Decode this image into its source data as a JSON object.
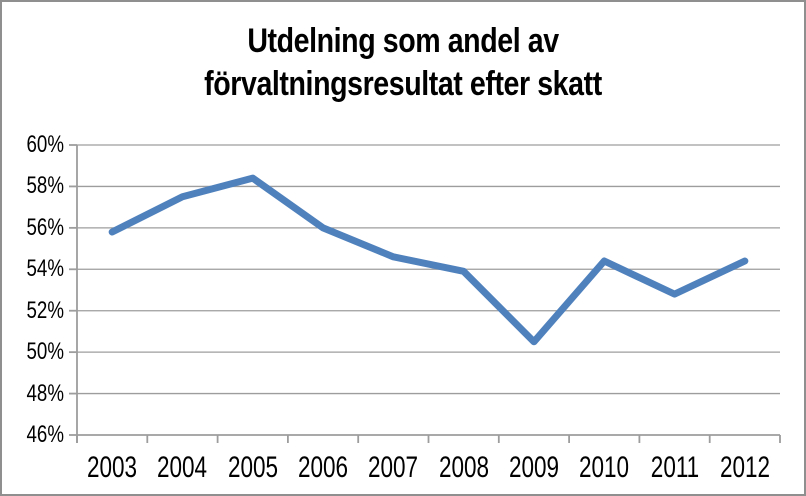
{
  "window": {
    "background_color": "#ffffff",
    "border_color": "#8f8f8f"
  },
  "chart_data": {
    "type": "line",
    "title": "Utdelning som andel av förvaltningsresultat efter skatt",
    "title_lines": [
      "Utdelning som andel av",
      "förvaltningsresultat efter skatt"
    ],
    "categories": [
      "2003",
      "2004",
      "2005",
      "2006",
      "2007",
      "2008",
      "2009",
      "2010",
      "2011",
      "2012"
    ],
    "series": [
      {
        "name": "Utdelning som andel av förvaltningsresultat efter skatt",
        "values": [
          55.8,
          57.5,
          58.4,
          56.0,
          54.6,
          53.9,
          50.5,
          54.4,
          52.8,
          54.4
        ]
      }
    ],
    "ylim": [
      46,
      60
    ],
    "y_tick_step": 2,
    "y_tick_labels": [
      "60%",
      "58%",
      "56%",
      "54%",
      "52%",
      "50%",
      "48%",
      "46%"
    ],
    "grid": true,
    "legend": "none",
    "line_color": "#4f81bd",
    "gridline_color": "#9d9d9d",
    "axis_color": "#9d9d9d",
    "text_color": "#000000"
  }
}
